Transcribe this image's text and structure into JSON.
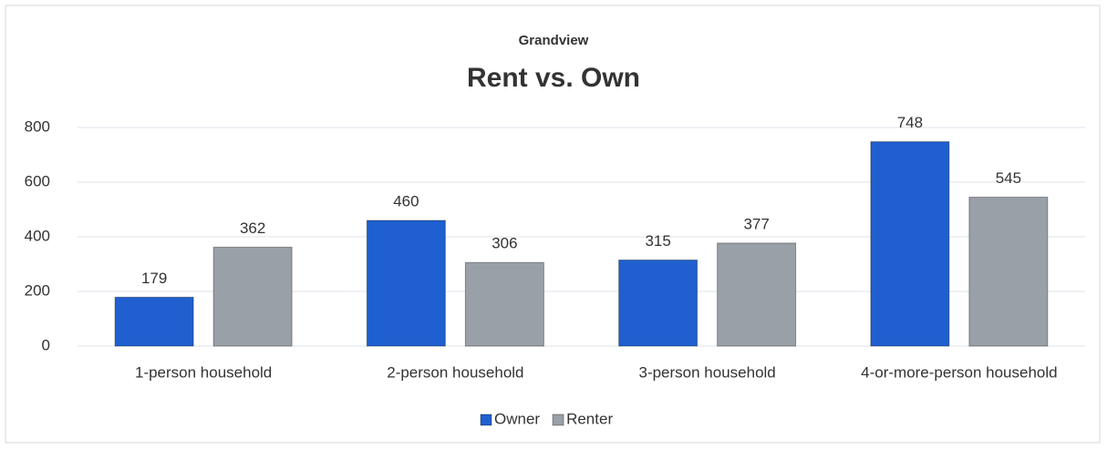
{
  "chart_data": {
    "type": "bar",
    "subtitle": "Grandview",
    "title": "Rent vs. Own",
    "categories": [
      "1-person household",
      "2-person household",
      "3-person household",
      "4-or-more-person household"
    ],
    "series": [
      {
        "name": "Owner",
        "color": "#1f5fcf",
        "values": [
          179,
          460,
          315,
          748
        ]
      },
      {
        "name": "Renter",
        "color": "#9aa0a8",
        "values": [
          362,
          306,
          377,
          545
        ]
      }
    ],
    "ylim": [
      0,
      800
    ],
    "yticks": [
      0,
      200,
      400,
      600,
      800
    ],
    "grid": true,
    "legend": "bottom"
  }
}
